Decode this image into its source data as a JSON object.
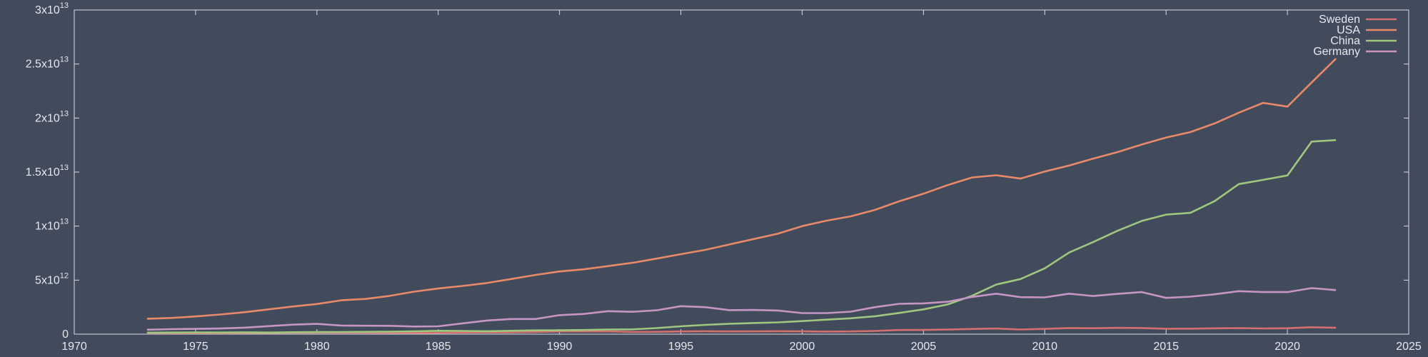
{
  "chart_data": {
    "type": "line",
    "title": "",
    "xlabel": "",
    "ylabel": "",
    "xlim": [
      1970,
      2025
    ],
    "ylim": [
      0,
      30000000000000
    ],
    "grid": false,
    "legend_position": "top-right",
    "x_ticks": [
      {
        "value": 1970,
        "label": "1970"
      },
      {
        "value": 1975,
        "label": "1975"
      },
      {
        "value": 1980,
        "label": "1980"
      },
      {
        "value": 1985,
        "label": "1985"
      },
      {
        "value": 1990,
        "label": "1990"
      },
      {
        "value": 1995,
        "label": "1995"
      },
      {
        "value": 2000,
        "label": "2000"
      },
      {
        "value": 2005,
        "label": "2005"
      },
      {
        "value": 2010,
        "label": "2010"
      },
      {
        "value": 2015,
        "label": "2015"
      },
      {
        "value": 2020,
        "label": "2020"
      },
      {
        "value": 2025,
        "label": "2025"
      }
    ],
    "y_ticks": [
      {
        "value": 0,
        "base": "0",
        "exp": ""
      },
      {
        "value": 5000000000000,
        "base": "5x10",
        "exp": "12"
      },
      {
        "value": 10000000000000,
        "base": "1x10",
        "exp": "13"
      },
      {
        "value": 15000000000000,
        "base": "1.5x10",
        "exp": "13"
      },
      {
        "value": 20000000000000,
        "base": "2x10",
        "exp": "13"
      },
      {
        "value": 25000000000000,
        "base": "2.5x10",
        "exp": "13"
      },
      {
        "value": 30000000000000,
        "base": "3x10",
        "exp": "13"
      }
    ],
    "x": [
      1973,
      1974,
      1975,
      1976,
      1977,
      1978,
      1979,
      1980,
      1981,
      1982,
      1983,
      1984,
      1985,
      1986,
      1987,
      1988,
      1989,
      1990,
      1991,
      1992,
      1993,
      1994,
      1995,
      1996,
      1997,
      1998,
      1999,
      2000,
      2001,
      2002,
      2003,
      2004,
      2005,
      2006,
      2007,
      2008,
      2009,
      2010,
      2011,
      2012,
      2013,
      2014,
      2015,
      2016,
      2017,
      2018,
      2019,
      2020,
      2021,
      2022
    ],
    "series": [
      {
        "name": "Sweden",
        "color": "#d36f6f",
        "values": [
          0.1,
          0.1,
          0.1,
          0.1,
          0.11,
          0.12,
          0.13,
          0.14,
          0.13,
          0.13,
          0.12,
          0.12,
          0.12,
          0.15,
          0.16,
          0.17,
          0.2,
          0.25,
          0.25,
          0.26,
          0.2,
          0.21,
          0.25,
          0.27,
          0.25,
          0.26,
          0.27,
          0.26,
          0.24,
          0.25,
          0.3,
          0.38,
          0.39,
          0.42,
          0.48,
          0.52,
          0.43,
          0.49,
          0.57,
          0.55,
          0.58,
          0.57,
          0.5,
          0.51,
          0.54,
          0.56,
          0.53,
          0.55,
          0.64,
          0.59
        ]
      },
      {
        "name": "USA",
        "color": "#e8896a",
        "values": [
          1.43,
          1.5,
          1.64,
          1.82,
          2.03,
          2.29,
          2.56,
          2.79,
          3.13,
          3.26,
          3.54,
          3.93,
          4.22,
          4.46,
          4.73,
          5.1,
          5.48,
          5.8,
          6.0,
          6.3,
          6.6,
          6.99,
          7.4,
          7.8,
          8.3,
          8.8,
          9.3,
          10.0,
          10.5,
          10.9,
          11.5,
          12.3,
          13.0,
          13.8,
          14.5,
          14.7,
          14.4,
          15.05,
          15.6,
          16.25,
          16.85,
          17.55,
          18.2,
          18.7,
          19.5,
          20.5,
          21.4,
          21.06,
          23.3,
          25.5
        ]
      },
      {
        "name": "China",
        "color": "#9fc77e",
        "values": [
          0.14,
          0.15,
          0.16,
          0.15,
          0.17,
          0.15,
          0.18,
          0.19,
          0.2,
          0.21,
          0.23,
          0.26,
          0.31,
          0.3,
          0.27,
          0.31,
          0.35,
          0.36,
          0.38,
          0.43,
          0.44,
          0.56,
          0.73,
          0.86,
          0.96,
          1.03,
          1.09,
          1.21,
          1.34,
          1.47,
          1.66,
          1.96,
          2.29,
          2.75,
          3.55,
          4.59,
          5.1,
          6.09,
          7.55,
          8.53,
          9.57,
          10.48,
          11.06,
          11.23,
          12.31,
          13.89,
          14.28,
          14.69,
          17.82,
          17.96
        ]
      },
      {
        "name": "Germany",
        "color": "#c795c3",
        "values": [
          0.41,
          0.46,
          0.49,
          0.52,
          0.6,
          0.74,
          0.88,
          0.95,
          0.8,
          0.78,
          0.77,
          0.71,
          0.73,
          1.0,
          1.26,
          1.4,
          1.4,
          1.76,
          1.87,
          2.13,
          2.07,
          2.21,
          2.59,
          2.5,
          2.22,
          2.24,
          2.19,
          1.95,
          1.95,
          2.08,
          2.5,
          2.81,
          2.85,
          3.0,
          3.44,
          3.75,
          3.42,
          3.4,
          3.75,
          3.53,
          3.73,
          3.89,
          3.36,
          3.47,
          3.69,
          3.98,
          3.89,
          3.89,
          4.26,
          4.08
        ]
      }
    ],
    "value_scale_note_units": "values in units of 1x10^12"
  }
}
